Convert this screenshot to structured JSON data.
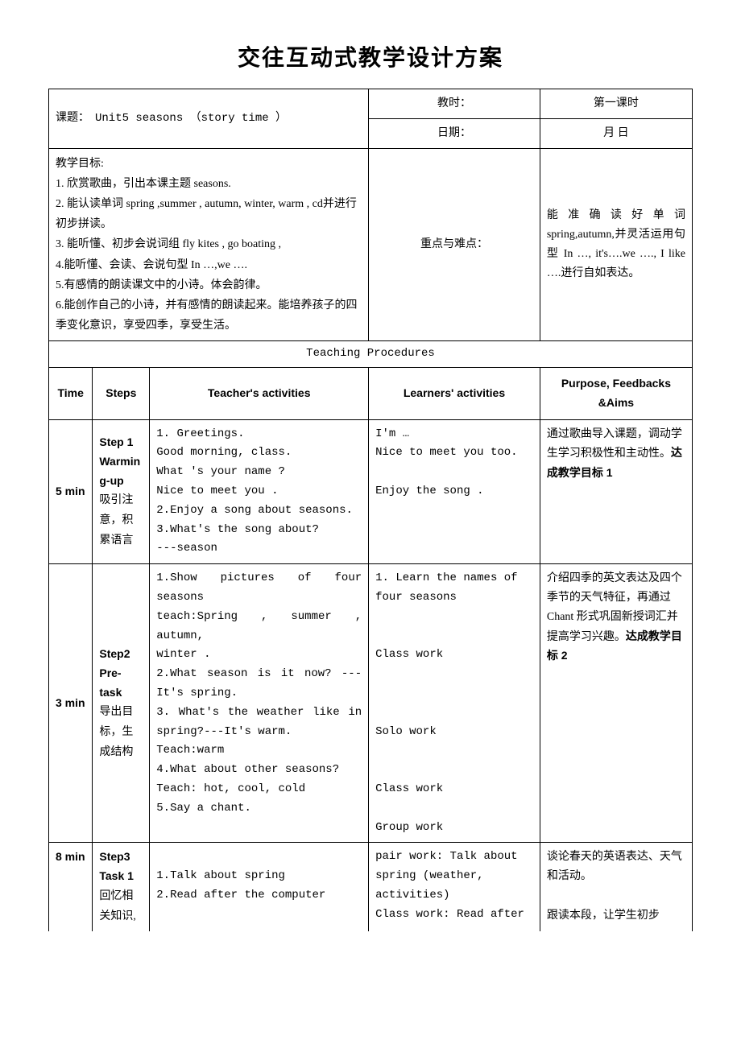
{
  "title": "交往互动式教学设计方案",
  "header": {
    "topic_label": "课题：",
    "topic_value": "Unit5 seasons  （story time ）",
    "period_label": "教时：",
    "period_value": "第一课时",
    "date_label": "日期：",
    "date_value": "月    日"
  },
  "goals": {
    "label": "教学目标:",
    "items": [
      "1. 欣赏歌曲，引出本课主题 seasons.",
      "2. 能认读单词 spring ,summer , autumn, winter, warm , cd并进行初步拼读。",
      "3. 能听懂、初步会说词组 fly kites , go boating ,",
      "4.能听懂、会读、会说句型 In …,we ….",
      "5.有感情的朗读课文中的小诗。体会韵律。",
      "6.能创作自己的小诗，并有感情的朗读起来。能培养孩子的四季变化意识，享受四季，享受生活。"
    ]
  },
  "keypoints": {
    "label": "重点与难点：",
    "text": "能准确读好单词spring,autumn,并灵活运用句型 In …, it's….we …., I like ….进行自如表达。"
  },
  "procedures_header": "Teaching Procedures",
  "columns": {
    "time": "Time",
    "steps": "Steps",
    "teacher": "Teacher's activities",
    "learner": "Learners' activities",
    "purpose": "Purpose, Feedbacks &Aims"
  },
  "rows": [
    {
      "time": "5 min",
      "step_en": "Step 1\nWarming-up",
      "step_cn": "吸引注意，积累语言",
      "teacher": "1. Greetings.\nGood morning, class.\nWhat 's your name ?\nNice to meet you .\n2.Enjoy a song about seasons.\n3.What's the song about?\n  ---season",
      "learner": "I'm …\nNice to meet you too.\n\nEnjoy the song .",
      "purpose_pre": "通过歌曲导入课题，调动学生学习积极性和主动性。",
      "purpose_bold": "达成教学目标 1"
    },
    {
      "time": "3 min",
      "step_en": "Step2\nPre-task",
      "step_cn": "导出目标，生成结构",
      "teacher": "1.Show  pictures  of  four seasons\nteach:Spring , summer , autumn,\n     winter .\n2.What  season  is  it  now? ---It's spring.\n3. What's the weather like in spring?---It's warm.\nTeach:warm\n4.What about other seasons?\nTeach: hot, cool, cold\n5.Say a chant.",
      "learner": "1. Learn the names of four seasons\n\n\nClass work\n\n\n\nSolo work\n\n\nClass work\n\nGroup work",
      "purpose_pre": "介绍四季的英文表达及四个季节的天气特征，再通过 Chant 形式巩固新授词汇并提高学习兴趣。",
      "purpose_bold": "达成教学目标 2"
    },
    {
      "time": "8 min",
      "step_en": "Step3\nTask 1",
      "step_cn": "回忆相关知识,",
      "teacher": "\n1.Talk about spring\n2.Read after the computer",
      "learner": "pair work:  Talk about spring     (weather, activities)\nClass work: Read after",
      "purpose_pre": "谈论春天的英语表达、天气和活动。\n\n跟读本段，让学生初步",
      "purpose_bold": ""
    }
  ]
}
